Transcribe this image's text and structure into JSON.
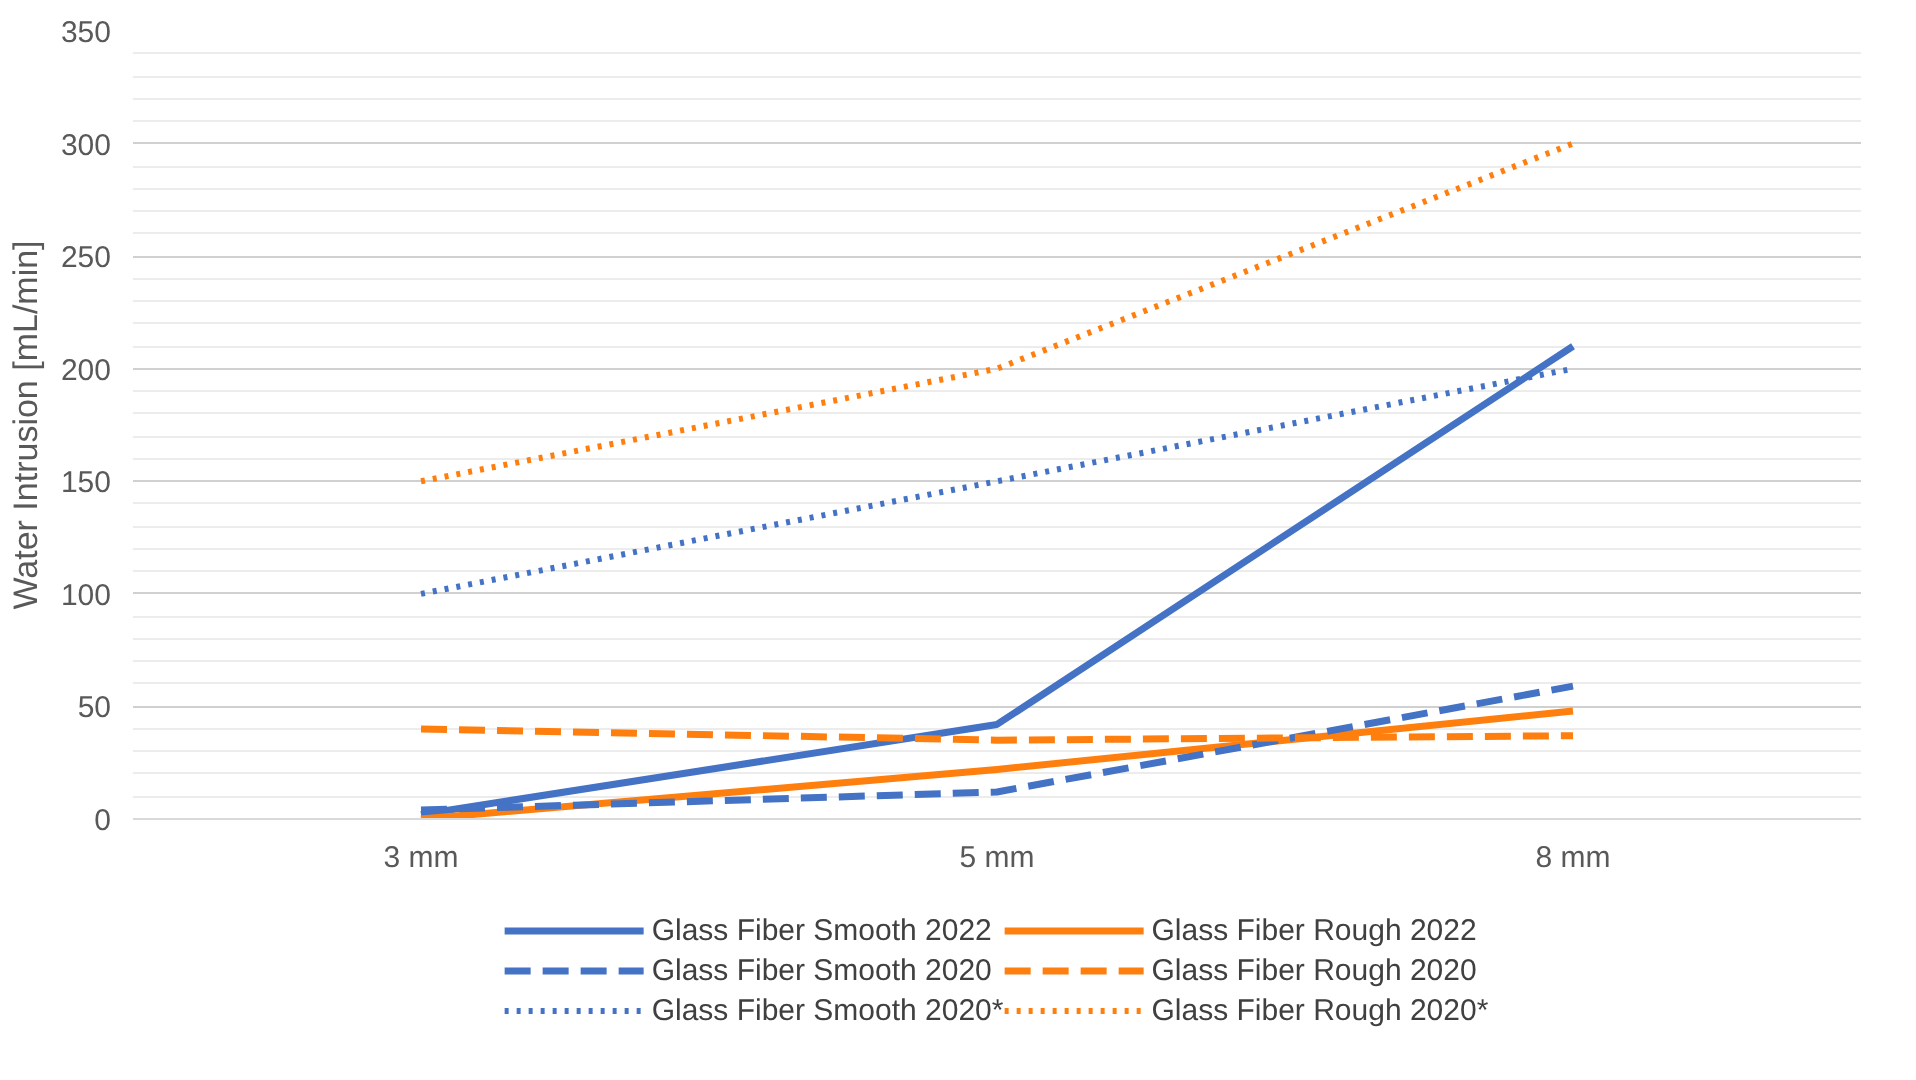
{
  "chart_data": {
    "type": "line",
    "ylabel": "Water Intrusion [mL/min]",
    "categories": [
      "3 mm",
      "5 mm",
      "8 mm"
    ],
    "ylim": [
      0,
      350
    ],
    "yticks": [
      0,
      50,
      100,
      150,
      200,
      250,
      300,
      350
    ],
    "grid": "y",
    "legend": "bottom",
    "series": [
      {
        "name": "Glass Fiber Smooth 2022",
        "color": "#4472c4",
        "line_style": "solid",
        "values": [
          2,
          42,
          210
        ]
      },
      {
        "name": "Glass Fiber Rough 2022",
        "color": "#ff7f0e",
        "line_style": "solid",
        "values": [
          0,
          22,
          48
        ]
      },
      {
        "name": "Glass Fiber Smooth 2020",
        "color": "#4472c4",
        "line_style": "dashed",
        "values": [
          4,
          12,
          59
        ]
      },
      {
        "name": "Glass Fiber Rough 2020",
        "color": "#ff7f0e",
        "line_style": "dashed",
        "values": [
          40,
          35,
          37
        ]
      },
      {
        "name": "Glass Fiber Smooth 2020*",
        "color": "#4472c4",
        "line_style": "dotted",
        "values": [
          100,
          150,
          200
        ]
      },
      {
        "name": "Glass Fiber Rough 2020*",
        "color": "#ff7f0e",
        "line_style": "dotted",
        "values": [
          150,
          200,
          300
        ]
      }
    ]
  }
}
